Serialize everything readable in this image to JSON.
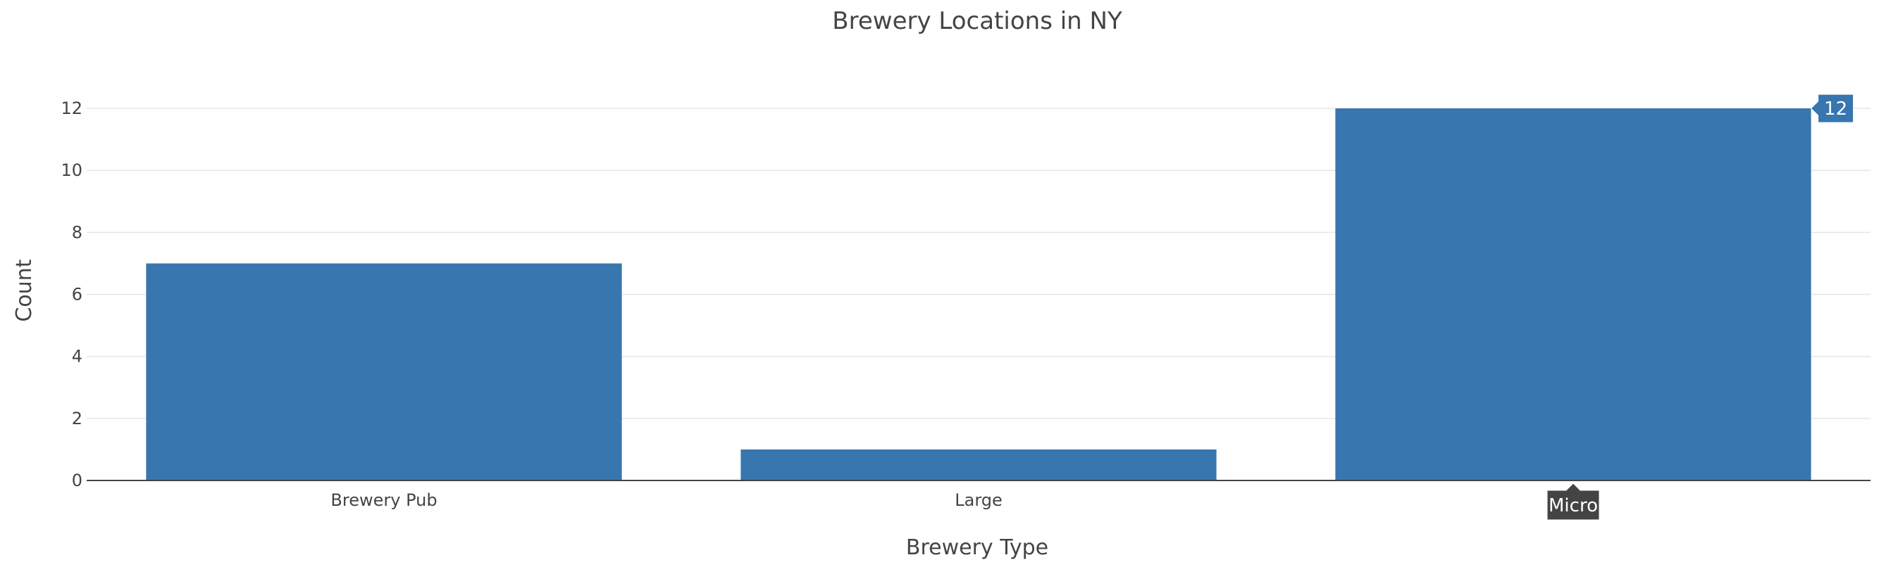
{
  "chart_data": {
    "type": "bar",
    "title": "Brewery Locations in NY",
    "xlabel": "Brewery Type",
    "ylabel": "Count",
    "categories": [
      "Brewery Pub",
      "Large",
      "Micro"
    ],
    "values": [
      7,
      1,
      12
    ],
    "ylim": [
      0,
      13
    ],
    "yticks": [
      0,
      2,
      4,
      6,
      8,
      10,
      12
    ],
    "grid": true,
    "legend": "none",
    "bar_color": "#3776ae",
    "hover": {
      "category": "Micro",
      "value": "12",
      "value_label_color": "#3776ae",
      "category_label_color": "#444444"
    }
  }
}
